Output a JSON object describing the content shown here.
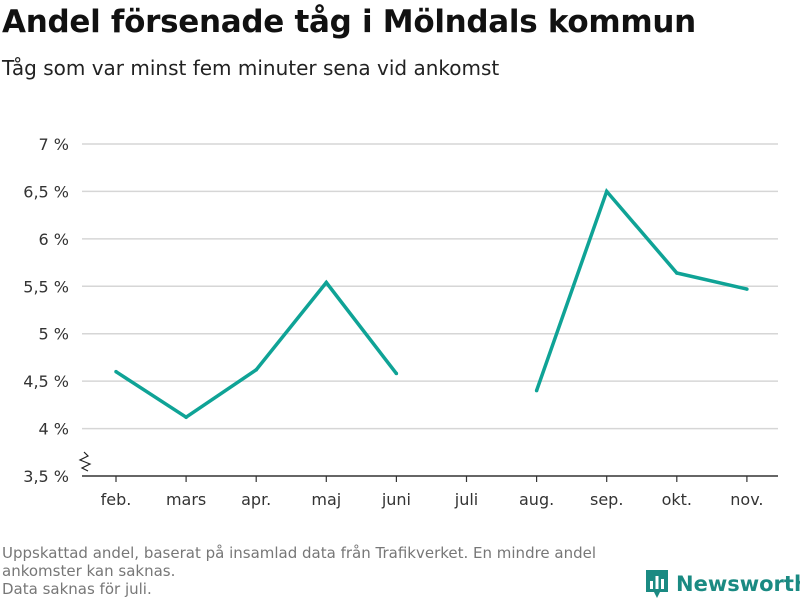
{
  "header": {
    "title": "Andel försenade tåg i Mölndals kommun",
    "subtitle": "Tåg som var minst fem minuter sena vid ankomst"
  },
  "chart_data": {
    "type": "line",
    "categories": [
      "feb.",
      "mars",
      "apr.",
      "maj",
      "juni",
      "juli",
      "aug.",
      "sep.",
      "okt.",
      "nov."
    ],
    "series": [
      {
        "values": [
          4.6,
          4.12,
          4.62,
          5.54,
          4.58,
          null,
          4.4,
          6.5,
          5.64,
          5.47
        ]
      }
    ],
    "yticks": [
      {
        "value": 3.5,
        "label": "3,5 %"
      },
      {
        "value": 4,
        "label": "4 %"
      },
      {
        "value": 4.5,
        "label": "4,5 %"
      },
      {
        "value": 5,
        "label": "5 %"
      },
      {
        "value": 5.5,
        "label": "5,5 %"
      },
      {
        "value": 6,
        "label": "6 %"
      },
      {
        "value": 6.5,
        "label": "6,5 %"
      },
      {
        "value": 7,
        "label": "7 %"
      }
    ],
    "ylim": [
      3.5,
      7
    ],
    "y_axis_break": true,
    "grid": true,
    "line_color": "#0fa396"
  },
  "footer": {
    "note_line1": "Uppskattad andel, baserat på insamlad data från Trafikverket. En mindre andel",
    "note_line2": "ankomster kan saknas.",
    "note_line3": "Data saknas för juli.",
    "brand": "Newsworthy",
    "brand_color": "#1a8a82",
    "brand_icon": "bar-chart-pin-icon"
  }
}
